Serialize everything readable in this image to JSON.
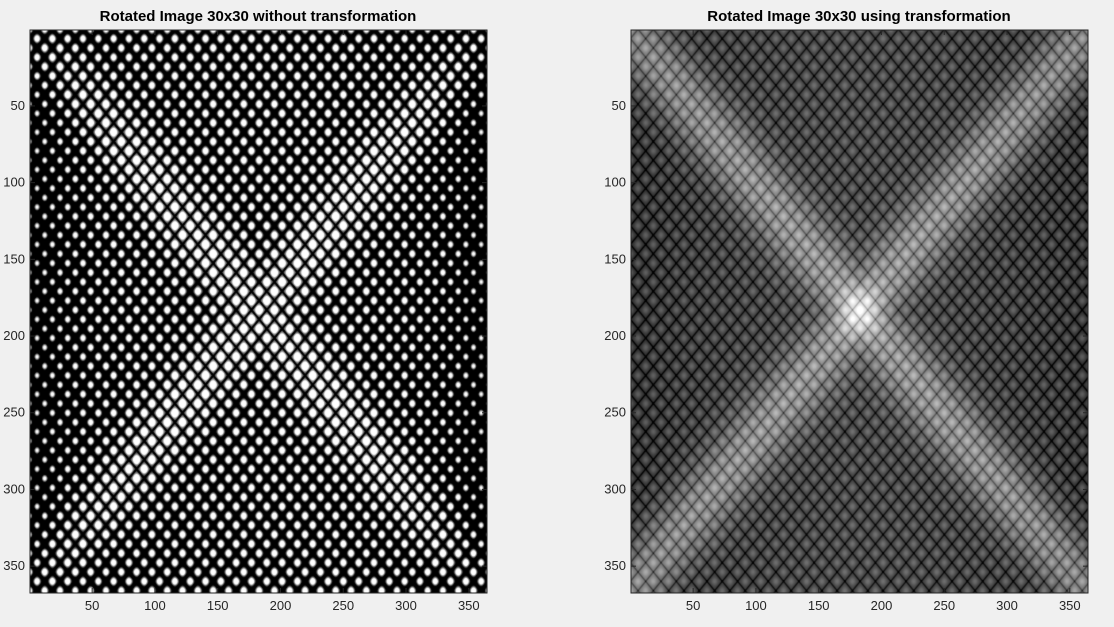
{
  "chart_data": [
    {
      "type": "heatmap",
      "title": "Rotated Image 30x30 without transformation",
      "xlabel": "",
      "ylabel": "",
      "colormap": "gray",
      "xlim": [
        0.5,
        364.5
      ],
      "ylim": [
        0.5,
        367.5
      ],
      "y_reversed": true,
      "grid": false,
      "x_ticks": [
        50,
        100,
        150,
        200,
        250,
        300,
        350
      ],
      "x_tick_labels": [
        "50",
        "100",
        "150",
        "200",
        "250",
        "300",
        "350"
      ],
      "y_ticks": [
        50,
        100,
        150,
        200,
        250,
        300,
        350
      ],
      "y_tick_labels": [
        "50",
        "100",
        "150",
        "200",
        "250",
        "300",
        "350"
      ],
      "pattern": {
        "description_values": "periodic lattice of bright cells rotated 45 degrees, with saturated white X-shaped diagonal bands and dark vertical edges",
        "lattice_period": 12.2,
        "band_intensity_bias": 0.55,
        "edge_dark_bias": 0.7,
        "contrast": 1.9,
        "line_darkness": 0.85
      }
    },
    {
      "type": "heatmap",
      "title": "Rotated Image 30x30 using transformation",
      "xlabel": "",
      "ylabel": "",
      "colormap": "gray",
      "xlim": [
        0.5,
        364.5
      ],
      "ylim": [
        0.5,
        367.5
      ],
      "y_reversed": true,
      "grid": false,
      "x_ticks": [
        50,
        100,
        150,
        200,
        250,
        300,
        350
      ],
      "x_tick_labels": [
        "50",
        "100",
        "150",
        "200",
        "250",
        "300",
        "350"
      ],
      "y_ticks": [
        50,
        100,
        150,
        200,
        250,
        300,
        350
      ],
      "y_tick_labels": [
        "50",
        "100",
        "150",
        "200",
        "250",
        "300",
        "350"
      ],
      "pattern": {
        "description_values": "periodic lattice of mid-gray cells rotated 45 degrees, with lighter X-shaped diagonal bands and a bright center",
        "lattice_period": 12.2,
        "base_intensity": 0.27,
        "band_intensity_bias": 0.3,
        "center_peak": 0.35,
        "contrast": 0.35,
        "line_darkness": 0.6
      }
    }
  ]
}
